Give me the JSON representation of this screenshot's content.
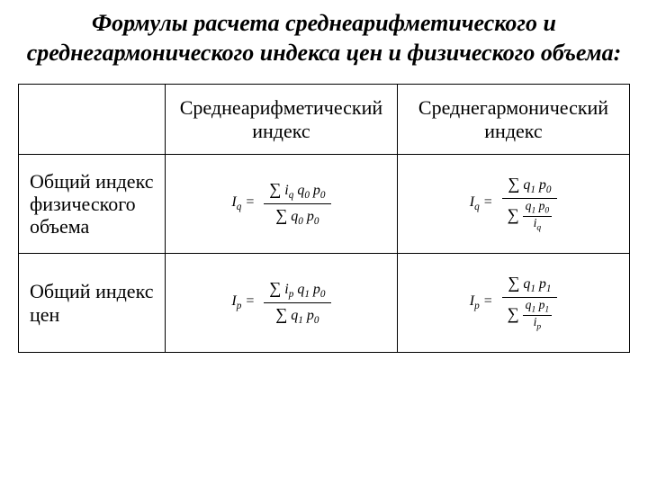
{
  "title": "Формулы расчета среднеарифметического и среднегармонического индекса цен и физического объема:",
  "table": {
    "columns": [
      "",
      "Среднеарифметический индекс",
      "Среднегармонический индекс"
    ],
    "rows": [
      {
        "label": "Общий индекс физического объема",
        "arith_lhs": "I",
        "arith_lhs_sub": "q",
        "arith_num": "∑ iq q0 p0",
        "arith_den": "∑ q0 p0",
        "harm_lhs": "I",
        "harm_lhs_sub": "q",
        "harm_num": "∑ q1 p0",
        "harm_den_sigma": "∑",
        "harm_den_frac_num": "q1 p0",
        "harm_den_frac_den": "iq"
      },
      {
        "label": "Общий индекс цен",
        "arith_lhs": "I",
        "arith_lhs_sub": "p",
        "arith_num": "∑ ip q1 p0",
        "arith_den": "∑ q1 p0",
        "harm_lhs": "I",
        "harm_lhs_sub": "p",
        "harm_num": "∑ q1 p1",
        "harm_den_sigma": "∑",
        "harm_den_frac_num": "q1 p1",
        "harm_den_frac_den": "ip"
      }
    ]
  },
  "colors": {
    "bg": "#ffffff",
    "text": "#000000",
    "border": "#000000"
  },
  "typography": {
    "title_fontsize": 26,
    "header_fontsize": 22,
    "body_fontsize": 22,
    "formula_fontsize": 16,
    "font_family": "Times New Roman"
  }
}
